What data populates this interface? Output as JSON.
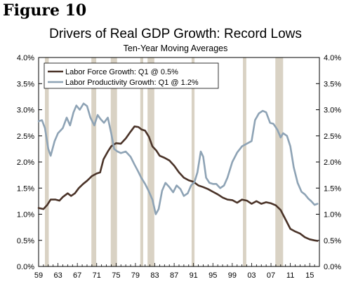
{
  "figure_label": "Figure 10",
  "chart_data": {
    "type": "line",
    "title": "Drivers of Real GDP Growth: Record Lows",
    "subtitle": "Ten-Year Moving Averages",
    "xlabel": "",
    "ylabel": "",
    "xlim": [
      1959,
      2017
    ],
    "ylim": [
      0,
      4.0
    ],
    "y_ticks": [
      "0.0%",
      "0.5%",
      "1.0%",
      "1.5%",
      "2.0%",
      "2.5%",
      "3.0%",
      "3.5%",
      "4.0%"
    ],
    "x_ticks": [
      "59",
      "63",
      "67",
      "71",
      "75",
      "79",
      "83",
      "87",
      "91",
      "95",
      "99",
      "03",
      "07",
      "11",
      "15"
    ],
    "grid": false,
    "legend_position": "top-left",
    "recessions": [
      [
        1960.3,
        1961.1
      ],
      [
        1969.9,
        1970.9
      ],
      [
        1973.9,
        1975.2
      ],
      [
        1980.0,
        1980.6
      ],
      [
        1981.5,
        1982.9
      ],
      [
        1990.6,
        1991.2
      ],
      [
        2001.2,
        2001.9
      ],
      [
        2007.9,
        2009.5
      ]
    ],
    "series": [
      {
        "name": "Labor Force Growth: Q1 @ 0.5%",
        "color": "#4a3328",
        "points": [
          [
            1959.0,
            1.12
          ],
          [
            1960.0,
            1.1
          ],
          [
            1960.8,
            1.18
          ],
          [
            1961.5,
            1.28
          ],
          [
            1962.5,
            1.28
          ],
          [
            1963.3,
            1.26
          ],
          [
            1964.0,
            1.33
          ],
          [
            1965.0,
            1.4
          ],
          [
            1965.7,
            1.35
          ],
          [
            1966.5,
            1.4
          ],
          [
            1967.3,
            1.5
          ],
          [
            1968.2,
            1.58
          ],
          [
            1969.0,
            1.64
          ],
          [
            1970.0,
            1.73
          ],
          [
            1971.0,
            1.78
          ],
          [
            1971.7,
            1.8
          ],
          [
            1972.4,
            2.05
          ],
          [
            1973.3,
            2.2
          ],
          [
            1974.0,
            2.3
          ],
          [
            1975.0,
            2.36
          ],
          [
            1976.0,
            2.35
          ],
          [
            1977.0,
            2.45
          ],
          [
            1978.0,
            2.58
          ],
          [
            1978.8,
            2.68
          ],
          [
            1979.6,
            2.67
          ],
          [
            1980.3,
            2.62
          ],
          [
            1981.0,
            2.6
          ],
          [
            1981.8,
            2.48
          ],
          [
            1982.5,
            2.3
          ],
          [
            1983.3,
            2.22
          ],
          [
            1984.0,
            2.12
          ],
          [
            1985.0,
            2.08
          ],
          [
            1986.0,
            2.03
          ],
          [
            1987.0,
            1.93
          ],
          [
            1988.0,
            1.8
          ],
          [
            1989.0,
            1.7
          ],
          [
            1990.0,
            1.65
          ],
          [
            1991.0,
            1.62
          ],
          [
            1992.0,
            1.55
          ],
          [
            1993.0,
            1.52
          ],
          [
            1994.0,
            1.48
          ],
          [
            1995.0,
            1.43
          ],
          [
            1996.0,
            1.38
          ],
          [
            1997.0,
            1.32
          ],
          [
            1998.0,
            1.28
          ],
          [
            1999.0,
            1.27
          ],
          [
            2000.0,
            1.22
          ],
          [
            2001.0,
            1.28
          ],
          [
            2002.0,
            1.26
          ],
          [
            2003.0,
            1.2
          ],
          [
            2004.0,
            1.25
          ],
          [
            2005.0,
            1.2
          ],
          [
            2006.0,
            1.23
          ],
          [
            2007.0,
            1.21
          ],
          [
            2008.0,
            1.17
          ],
          [
            2009.0,
            1.08
          ],
          [
            2010.0,
            0.9
          ],
          [
            2011.0,
            0.72
          ],
          [
            2012.0,
            0.67
          ],
          [
            2013.0,
            0.63
          ],
          [
            2014.0,
            0.56
          ],
          [
            2015.0,
            0.52
          ],
          [
            2016.0,
            0.5
          ],
          [
            2016.6,
            0.49
          ]
        ]
      },
      {
        "name": "Labor Productivity Growth: Q1 @ 1.2%",
        "color": "#8ea3b5",
        "points": [
          [
            1959.0,
            2.78
          ],
          [
            1959.7,
            2.8
          ],
          [
            1960.3,
            2.65
          ],
          [
            1961.0,
            2.25
          ],
          [
            1961.5,
            2.12
          ],
          [
            1962.3,
            2.4
          ],
          [
            1963.0,
            2.55
          ],
          [
            1964.0,
            2.65
          ],
          [
            1964.8,
            2.85
          ],
          [
            1965.5,
            2.7
          ],
          [
            1966.2,
            2.95
          ],
          [
            1966.8,
            3.08
          ],
          [
            1967.5,
            3.0
          ],
          [
            1968.3,
            3.12
          ],
          [
            1969.0,
            3.07
          ],
          [
            1969.7,
            2.85
          ],
          [
            1970.5,
            2.7
          ],
          [
            1971.2,
            2.9
          ],
          [
            1971.8,
            2.82
          ],
          [
            1972.5,
            2.75
          ],
          [
            1973.3,
            2.85
          ],
          [
            1974.0,
            2.55
          ],
          [
            1974.6,
            2.25
          ],
          [
            1975.3,
            2.2
          ],
          [
            1976.0,
            2.17
          ],
          [
            1977.0,
            2.2
          ],
          [
            1978.0,
            2.1
          ],
          [
            1978.8,
            1.95
          ],
          [
            1979.5,
            1.83
          ],
          [
            1980.2,
            1.7
          ],
          [
            1981.0,
            1.58
          ],
          [
            1981.7,
            1.45
          ],
          [
            1982.5,
            1.28
          ],
          [
            1983.2,
            1.0
          ],
          [
            1983.8,
            1.1
          ],
          [
            1984.5,
            1.45
          ],
          [
            1985.2,
            1.6
          ],
          [
            1986.0,
            1.52
          ],
          [
            1986.8,
            1.42
          ],
          [
            1987.5,
            1.55
          ],
          [
            1988.3,
            1.48
          ],
          [
            1989.0,
            1.35
          ],
          [
            1989.8,
            1.4
          ],
          [
            1990.5,
            1.55
          ],
          [
            1991.2,
            1.62
          ],
          [
            1991.8,
            1.8
          ],
          [
            1992.5,
            2.2
          ],
          [
            1993.0,
            2.1
          ],
          [
            1993.6,
            1.7
          ],
          [
            1994.3,
            1.6
          ],
          [
            1995.0,
            1.58
          ],
          [
            1995.7,
            1.58
          ],
          [
            1996.5,
            1.5
          ],
          [
            1997.3,
            1.55
          ],
          [
            1998.0,
            1.7
          ],
          [
            1999.0,
            2.0
          ],
          [
            2000.0,
            2.18
          ],
          [
            2001.0,
            2.3
          ],
          [
            2002.0,
            2.35
          ],
          [
            2003.0,
            2.4
          ],
          [
            2003.7,
            2.8
          ],
          [
            2004.5,
            2.93
          ],
          [
            2005.3,
            2.98
          ],
          [
            2006.0,
            2.95
          ],
          [
            2006.8,
            2.75
          ],
          [
            2007.5,
            2.73
          ],
          [
            2008.3,
            2.62
          ],
          [
            2009.0,
            2.47
          ],
          [
            2009.5,
            2.55
          ],
          [
            2010.3,
            2.5
          ],
          [
            2011.0,
            2.3
          ],
          [
            2011.7,
            1.9
          ],
          [
            2012.5,
            1.6
          ],
          [
            2013.3,
            1.43
          ],
          [
            2014.0,
            1.38
          ],
          [
            2014.7,
            1.3
          ],
          [
            2015.3,
            1.25
          ],
          [
            2016.0,
            1.18
          ],
          [
            2016.6,
            1.2
          ]
        ]
      }
    ]
  }
}
